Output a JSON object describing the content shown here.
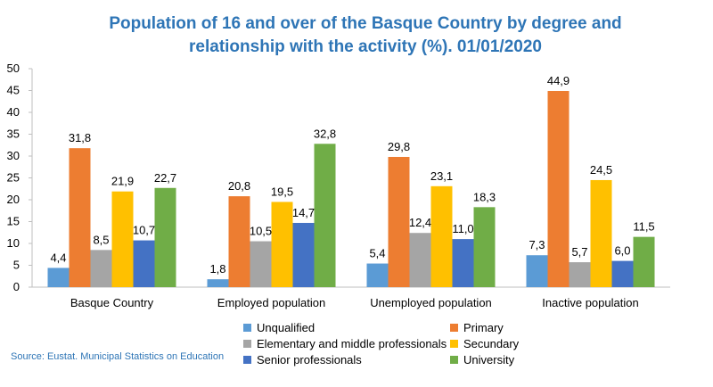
{
  "title_line1": "Population of 16 and over of the Basque Country by degree and",
  "title_line2": "relationship with the activity (%). 01/01/2020",
  "source": "Source: Eustat. Municipal Statistics on Education",
  "chart_data": {
    "type": "bar",
    "title": "Population of 16 and over of the Basque Country by degree and relationship with the activity (%). 01/01/2020",
    "categories": [
      "Basque Country",
      "Employed population",
      "Unemployed population",
      "Inactive population"
    ],
    "ylim": [
      0,
      50
    ],
    "yticks": [
      0,
      5,
      10,
      15,
      20,
      25,
      30,
      35,
      40,
      45,
      50
    ],
    "grid": false,
    "legend_position": "bottom",
    "series": [
      {
        "name": "Unqualified",
        "color": "#5B9BD5",
        "values": [
          4.4,
          1.8,
          5.4,
          7.3
        ],
        "labels": [
          "4,4",
          "1,8",
          "5,4",
          "7,3"
        ]
      },
      {
        "name": "Primary",
        "color": "#ED7D31",
        "values": [
          31.8,
          20.8,
          29.8,
          44.9
        ],
        "labels": [
          "31,8",
          "20,8",
          "29,8",
          "44,9"
        ]
      },
      {
        "name": "Elementary and middle professionals",
        "color": "#A5A5A5",
        "values": [
          8.5,
          10.5,
          12.4,
          5.7
        ],
        "labels": [
          "8,5",
          "10,5",
          "12,4",
          "5,7"
        ]
      },
      {
        "name": "Secundary",
        "color": "#FFC000",
        "values": [
          21.9,
          19.5,
          23.1,
          24.5
        ],
        "labels": [
          "21,9",
          "19,5",
          "23,1",
          "24,5"
        ]
      },
      {
        "name": "Senior professionals",
        "color": "#4472C4",
        "values": [
          10.7,
          14.7,
          11.0,
          6.0
        ],
        "labels": [
          "10,7",
          "14,7",
          "11,0",
          "6,0"
        ]
      },
      {
        "name": "University",
        "color": "#70AD47",
        "values": [
          22.7,
          32.8,
          18.3,
          11.5
        ],
        "labels": [
          "22,7",
          "32,8",
          "18,3",
          "11,5"
        ]
      }
    ]
  }
}
